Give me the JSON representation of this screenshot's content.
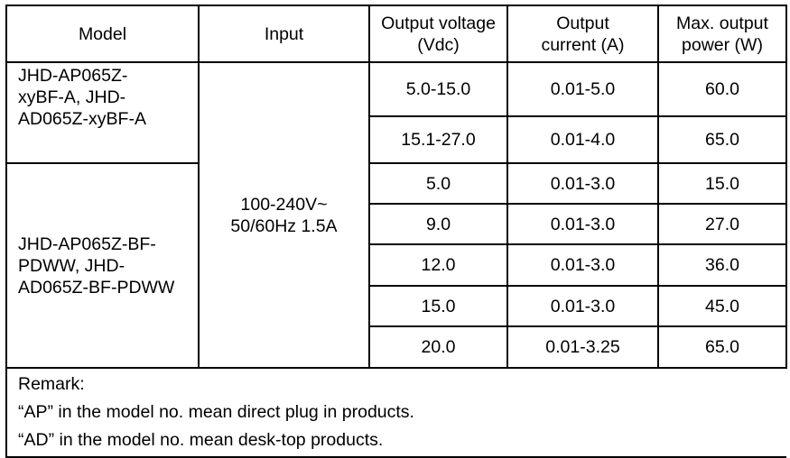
{
  "headers": [
    "Model",
    "Input",
    "Output voltage (Vdc)",
    "Output current (A)",
    "Max. output power (W)"
  ],
  "groups": [
    {
      "model": "JHD-AP065Z-xyBF-A, JHD-AD065Z-xyBF-A",
      "rows": [
        {
          "voltage": "5.0-15.0",
          "current": "0.01-5.0",
          "power": "60.0"
        },
        {
          "voltage": "15.1-27.0",
          "current": "0.01-4.0",
          "power": "65.0"
        }
      ]
    },
    {
      "model": "JHD-AP065Z-BF-PDWW, JHD-AD065Z-BF-PDWW",
      "rows": [
        {
          "voltage": "5.0",
          "current": "0.01-3.0",
          "power": "15.0"
        },
        {
          "voltage": "9.0",
          "current": "0.01-3.0",
          "power": "27.0"
        },
        {
          "voltage": "12.0",
          "current": "0.01-3.0",
          "power": "36.0"
        },
        {
          "voltage": "15.0",
          "current": "0.01-3.0",
          "power": "45.0"
        },
        {
          "voltage": "20.0",
          "current": "0.01-3.25",
          "power": "65.0"
        }
      ]
    }
  ],
  "input": "100-240V~ 50/60Hz 1.5A",
  "remark": {
    "title": "Remark:",
    "lines": [
      "“AP” in the model no. mean direct plug in products.",
      "“AD” in the model no. mean desk-top products."
    ]
  }
}
